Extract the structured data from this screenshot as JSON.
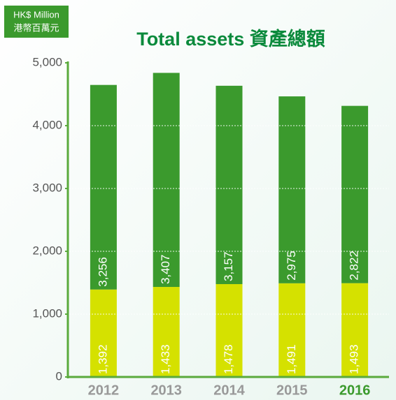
{
  "chart_data": {
    "type": "stacked_bar",
    "title": "Total assets 資產總額",
    "y_label": [
      "HK$ Million",
      "港幣百萬元"
    ],
    "categories": [
      "2012",
      "2013",
      "2014",
      "2015",
      "2016"
    ],
    "series": [
      {
        "color": "#d5e100",
        "values": [
          1392,
          1433,
          1478,
          1491,
          1493
        ],
        "value_labels": [
          "1,392",
          "1,433",
          "1,478",
          "1,491",
          "1,493"
        ]
      },
      {
        "color": "#3b9a2d",
        "values": [
          3256,
          3407,
          3157,
          2975,
          2822
        ],
        "value_labels": [
          "3,256",
          "3,407",
          "3,157",
          "2,975",
          "2,822"
        ]
      }
    ],
    "ylim": [
      0,
      5000
    ],
    "yticks": [
      0,
      {
        "value": 1000,
        "label": "1,000"
      },
      {
        "value": 2000,
        "label": "2,000"
      },
      {
        "value": 3000,
        "label": "3,000"
      },
      {
        "value": 4000,
        "label": "4,000"
      },
      {
        "value": 5000,
        "label": "5,000"
      }
    ],
    "grid": true
  }
}
